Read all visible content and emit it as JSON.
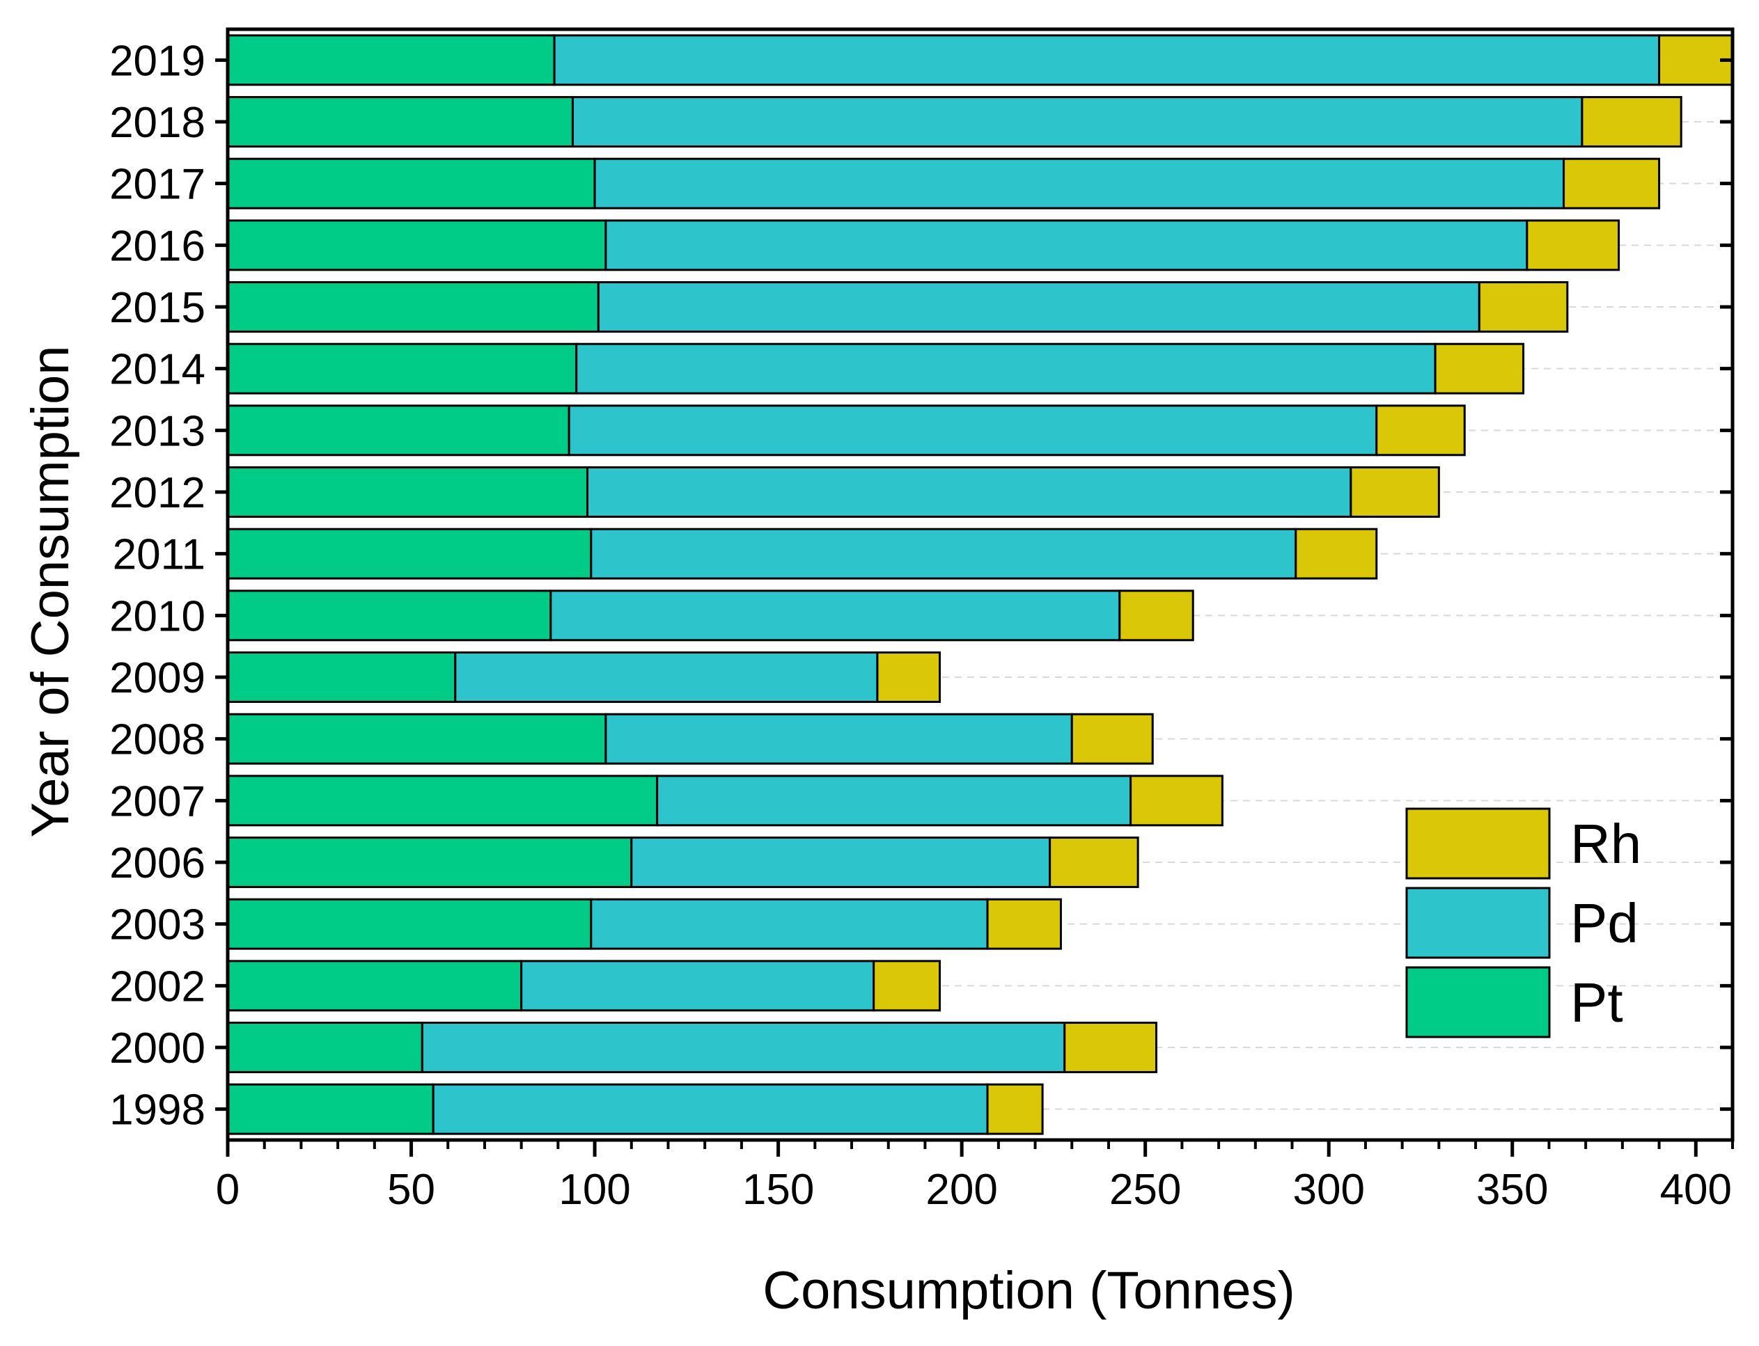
{
  "chart_data": {
    "type": "bar",
    "orientation": "horizontal",
    "stacked": true,
    "categories": [
      "1998",
      "2000",
      "2002",
      "2003",
      "2006",
      "2007",
      "2008",
      "2009",
      "2010",
      "2011",
      "2012",
      "2013",
      "2014",
      "2015",
      "2016",
      "2017",
      "2018",
      "2019"
    ],
    "series": [
      {
        "name": "Pt",
        "color": "#00CC88",
        "values": [
          56,
          53,
          80,
          99,
          110,
          117,
          103,
          62,
          88,
          99,
          98,
          93,
          95,
          101,
          103,
          100,
          94,
          89
        ]
      },
      {
        "name": "Pd",
        "color": "#2EC4CC",
        "values": [
          151,
          175,
          96,
          108,
          114,
          129,
          127,
          115,
          155,
          192,
          208,
          220,
          234,
          240,
          251,
          264,
          275,
          301
        ]
      },
      {
        "name": "Rh",
        "color": "#D9C708",
        "values": [
          15,
          25,
          18,
          20,
          24,
          25,
          22,
          17,
          20,
          22,
          24,
          24,
          24,
          24,
          25,
          26,
          27,
          34
        ]
      }
    ],
    "xlabel": "Consumption (Tonnes)",
    "ylabel": "Year of Consumption",
    "xlim": [
      0,
      410
    ],
    "x_ticks": [
      0,
      50,
      100,
      150,
      200,
      250,
      300,
      350,
      400
    ],
    "grid": true,
    "legend_position": "bottom-right",
    "legend_order": [
      "Rh",
      "Pd",
      "Pt"
    ]
  }
}
